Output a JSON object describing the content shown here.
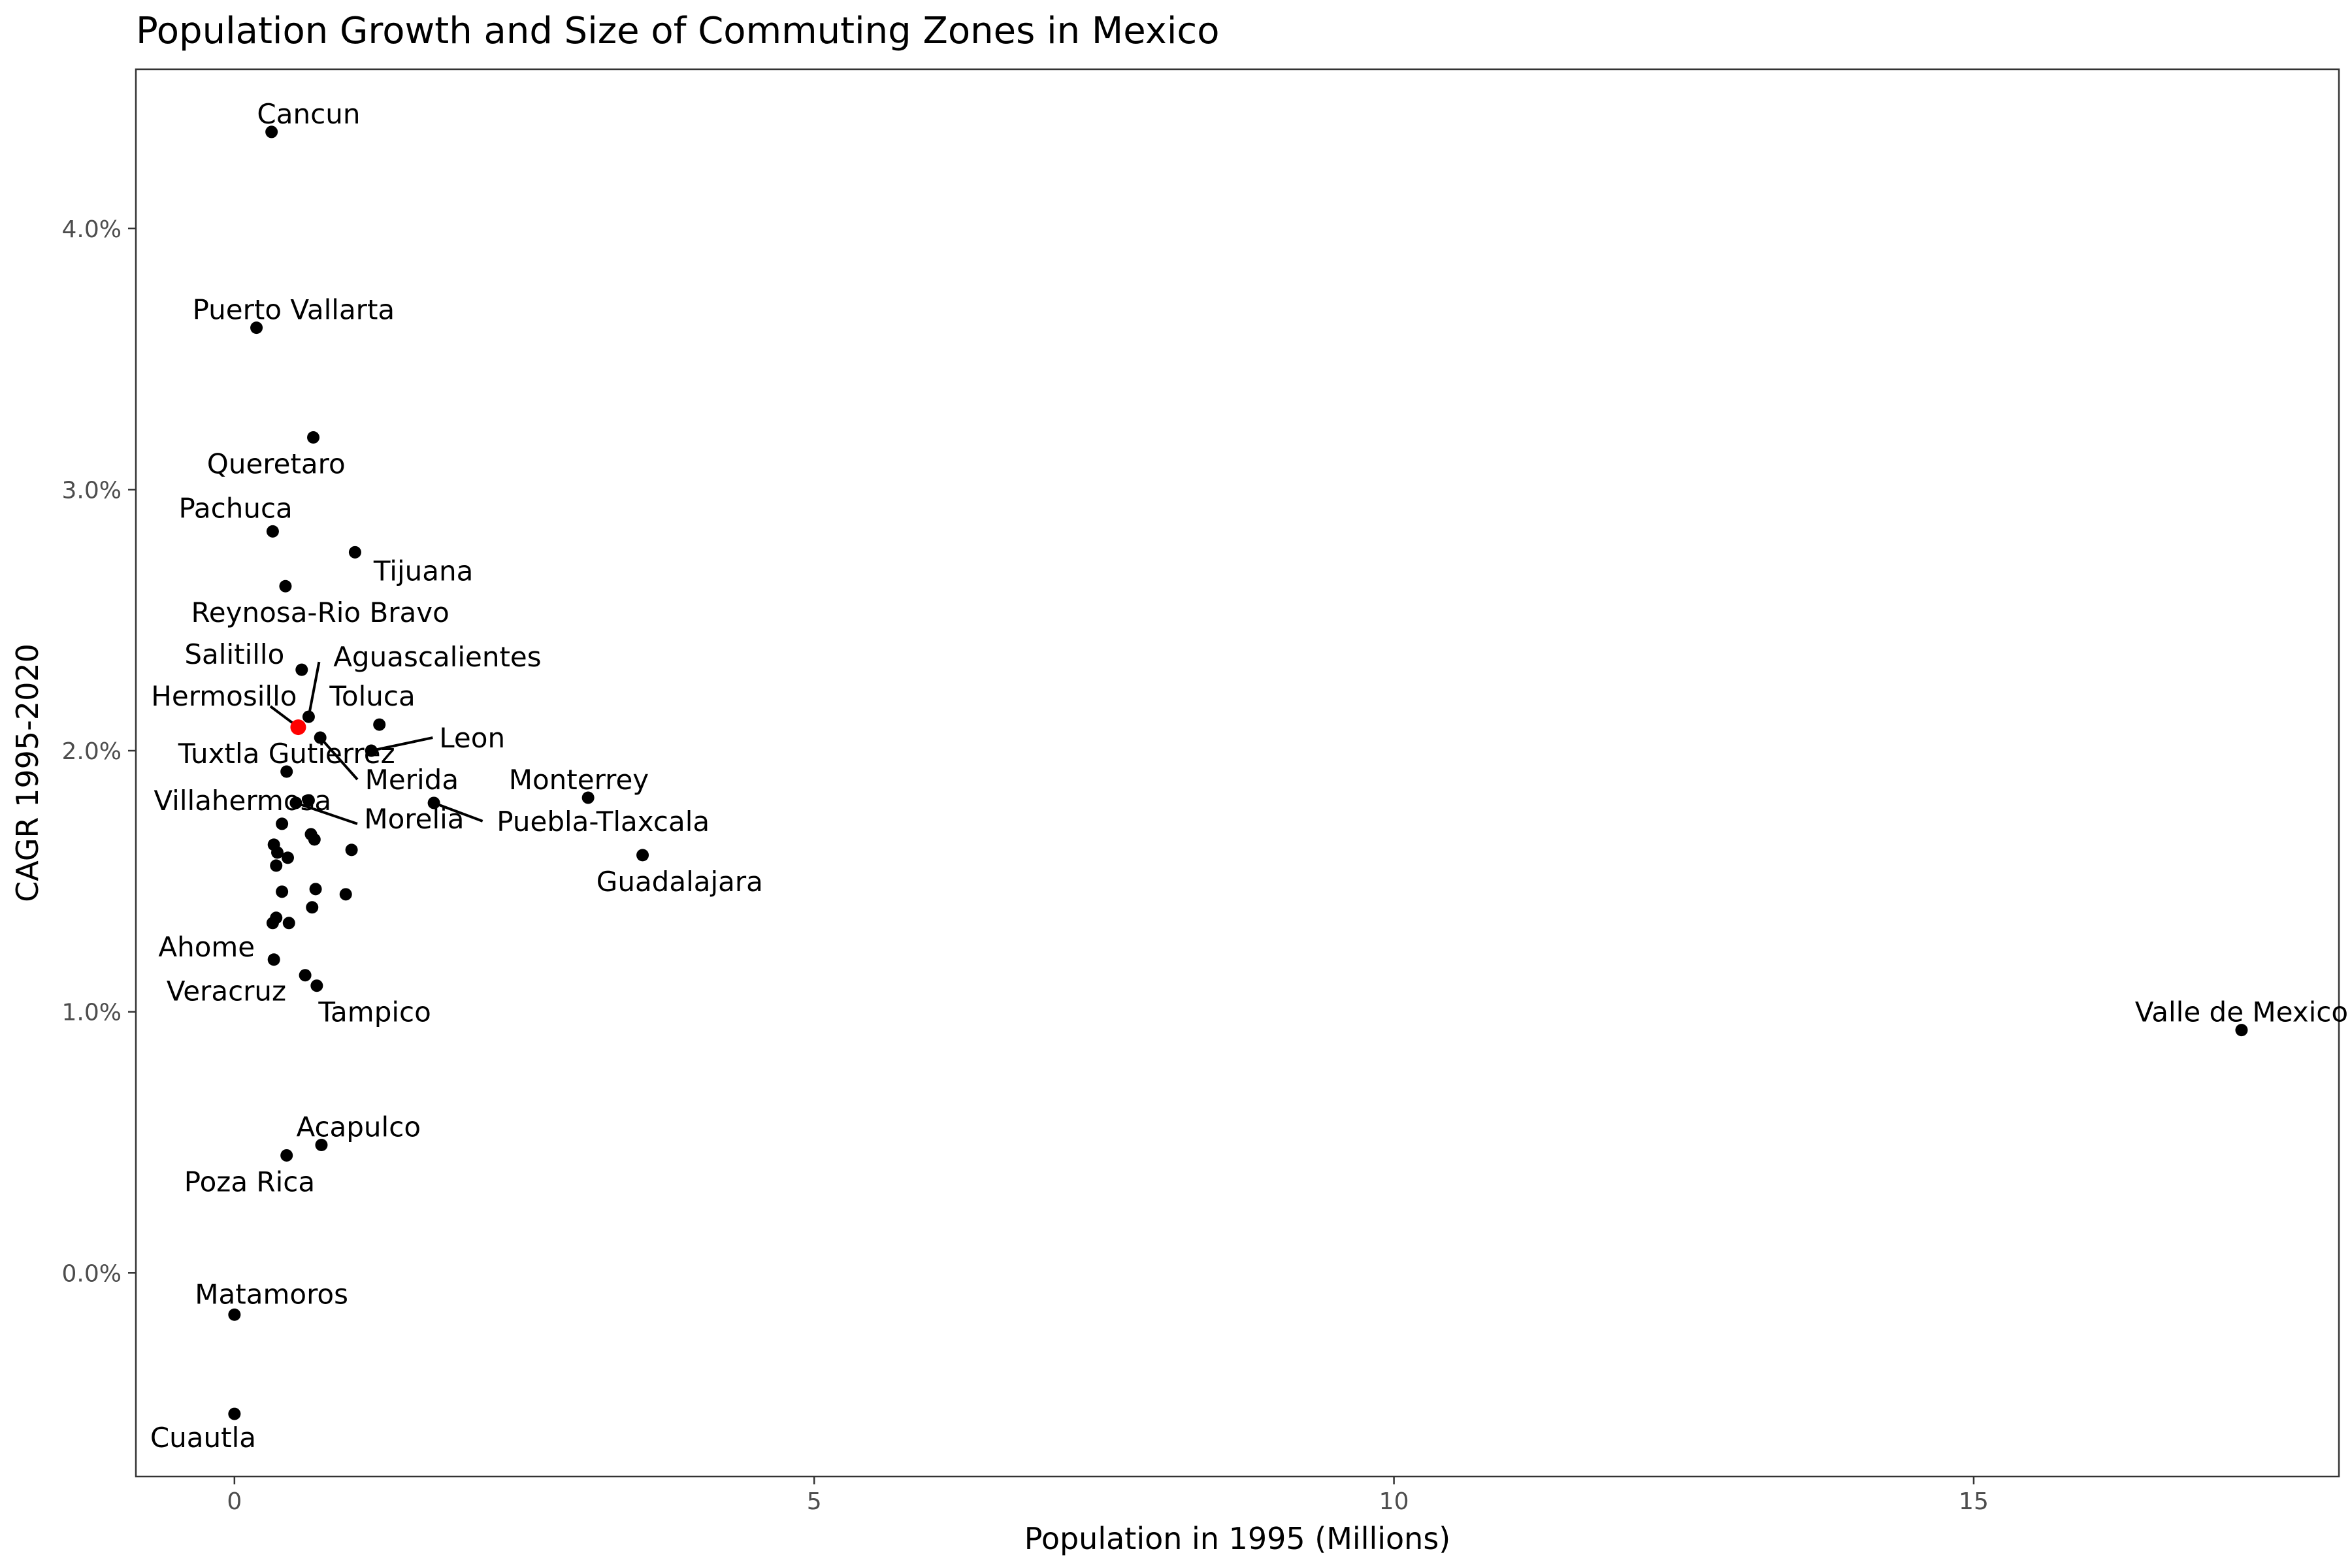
{
  "chart_data": {
    "type": "scatter",
    "title": "Population Growth and Size of Commuting Zones in Mexico",
    "xlabel": "Population in 1995 (Millions)",
    "ylabel": "CAGR 1995-2020",
    "xlim": [
      -0.85,
      18.15
    ],
    "ylim": [
      -0.78,
      4.61
    ],
    "x_ticks": [
      0,
      5,
      10,
      15
    ],
    "x_tick_labels": [
      "0",
      "5",
      "10",
      "15"
    ],
    "y_ticks": [
      0,
      1,
      2,
      3,
      4
    ],
    "y_tick_labels": [
      "0.0%",
      "1.0%",
      "2.0%",
      "3.0%",
      "4.0%"
    ],
    "grid": false,
    "highlight_color": "#ff0000",
    "point_color": "#000000",
    "points": [
      {
        "x": 0.32,
        "y": 4.37,
        "label": "Cancun",
        "lx": 0.64,
        "ly": 4.44
      },
      {
        "x": 0.19,
        "y": 3.62,
        "label": "Puerto Vallarta",
        "lx": 0.51,
        "ly": 3.69
      },
      {
        "x": 0.68,
        "y": 3.2,
        "label": "Queretaro",
        "lx": 0.36,
        "ly": 3.1
      },
      {
        "x": 0.33,
        "y": 2.84,
        "label": "Pachuca",
        "lx": 0.01,
        "ly": 2.93
      },
      {
        "x": 1.04,
        "y": 2.76,
        "label": "Tijuana",
        "lx": 1.63,
        "ly": 2.69
      },
      {
        "x": 0.44,
        "y": 2.63,
        "label": "Reynosa-Rio Bravo",
        "lx": 0.74,
        "ly": 2.53
      },
      {
        "x": 0.58,
        "y": 2.31,
        "label": "Salitillo",
        "lx": 0.0,
        "ly": 2.37
      },
      {
        "x": 0.64,
        "y": 2.13,
        "label": "Aguascalientes",
        "lx": 1.75,
        "ly": 2.36,
        "leader": [
          0.73,
          2.34
        ]
      },
      {
        "x": 0.55,
        "y": 2.09,
        "label": "Hermosillo",
        "lx": -0.09,
        "ly": 2.21,
        "leader": [
          0.31,
          2.17
        ],
        "highlight": true
      },
      {
        "x": 1.25,
        "y": 2.1,
        "label": "Toluca",
        "lx": 1.19,
        "ly": 2.21
      },
      {
        "x": 0.74,
        "y": 2.05,
        "label": "Merida",
        "lx": 1.53,
        "ly": 1.89,
        "leader": [
          1.06,
          1.89
        ]
      },
      {
        "x": 1.18,
        "y": 2.0,
        "label": "Leon",
        "lx": 2.05,
        "ly": 2.05,
        "leader": [
          1.71,
          2.05
        ]
      },
      {
        "x": 0.45,
        "y": 1.92,
        "label": "Tuxtla Gutierrez",
        "lx": 0.45,
        "ly": 1.99
      },
      {
        "x": 3.05,
        "y": 1.82,
        "label": "Monterrey",
        "lx": 2.97,
        "ly": 1.89
      },
      {
        "x": 0.64,
        "y": 1.81,
        "label": "Villahermosa",
        "lx": 0.07,
        "ly": 1.81
      },
      {
        "x": 0.53,
        "y": 1.8,
        "label": "Morelia",
        "lx": 1.55,
        "ly": 1.74,
        "leader": [
          1.06,
          1.72
        ]
      },
      {
        "x": 1.72,
        "y": 1.8,
        "label": "Puebla-Tlaxcala",
        "lx": 3.18,
        "ly": 1.73,
        "leader": [
          2.14,
          1.73
        ]
      },
      {
        "x": 3.52,
        "y": 1.6,
        "label": "Guadalajara",
        "lx": 3.84,
        "ly": 1.5
      },
      {
        "x": 0.34,
        "y": 1.2,
        "label": "Ahome",
        "lx": -0.24,
        "ly": 1.25
      },
      {
        "x": 0.61,
        "y": 1.14,
        "label": "Veracruz",
        "lx": -0.07,
        "ly": 1.08
      },
      {
        "x": 0.71,
        "y": 1.1,
        "label": "Tampico",
        "lx": 1.21,
        "ly": 1.0
      },
      {
        "x": 17.31,
        "y": 0.93,
        "label": "Valle de Mexico",
        "lx": 17.31,
        "ly": 1.0
      },
      {
        "x": 0.75,
        "y": 0.49,
        "label": "Acapulco",
        "lx": 1.07,
        "ly": 0.56
      },
      {
        "x": 0.45,
        "y": 0.45,
        "label": "Poza Rica",
        "lx": 0.13,
        "ly": 0.35
      },
      {
        "x": 0.0,
        "y": -0.16,
        "label": "Matamoros",
        "lx": 0.32,
        "ly": -0.08
      },
      {
        "x": 0.0,
        "y": -0.54,
        "label": "Cuautla",
        "lx": -0.27,
        "ly": -0.63
      },
      {
        "x": 0.34,
        "y": 1.64
      },
      {
        "x": 0.37,
        "y": 1.61
      },
      {
        "x": 0.36,
        "y": 1.56
      },
      {
        "x": 0.41,
        "y": 1.72
      },
      {
        "x": 0.46,
        "y": 1.59
      },
      {
        "x": 0.66,
        "y": 1.68
      },
      {
        "x": 0.69,
        "y": 1.66
      },
      {
        "x": 1.01,
        "y": 1.62
      },
      {
        "x": 0.41,
        "y": 1.46
      },
      {
        "x": 0.7,
        "y": 1.47
      },
      {
        "x": 0.96,
        "y": 1.45
      },
      {
        "x": 0.67,
        "y": 1.4
      },
      {
        "x": 0.36,
        "y": 1.36
      },
      {
        "x": 0.33,
        "y": 1.34
      },
      {
        "x": 0.47,
        "y": 1.34
      }
    ]
  }
}
